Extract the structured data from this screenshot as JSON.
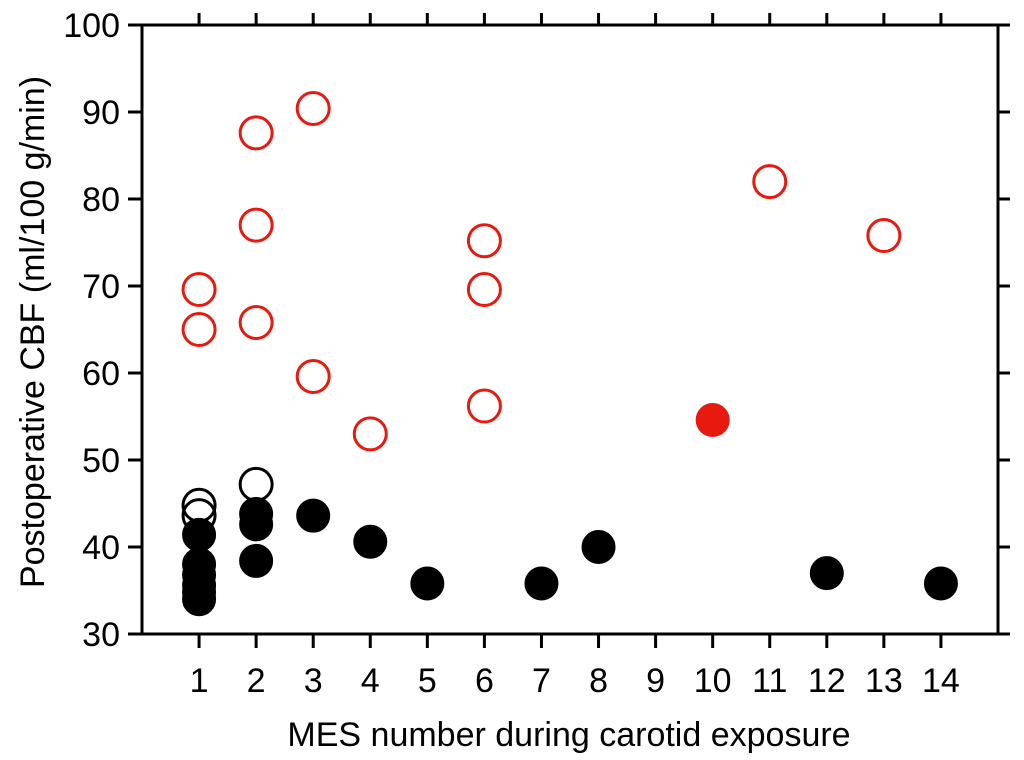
{
  "chart_data": {
    "type": "scatter",
    "title": "",
    "xlabel": "MES number during carotid exposure",
    "ylabel": "Postoperative CBF (ml/100 g/min)",
    "xlim": [
      0,
      15
    ],
    "ylim": [
      30,
      100
    ],
    "xticks": [
      1,
      2,
      3,
      4,
      5,
      6,
      7,
      8,
      9,
      10,
      11,
      12,
      13,
      14
    ],
    "yticks": [
      30,
      40,
      50,
      60,
      70,
      80,
      90,
      100
    ],
    "grid": false,
    "legend": "none",
    "series": [
      {
        "marker": "open-circle",
        "color": "#e8190f",
        "points": [
          {
            "x": 1,
            "y": 69.6
          },
          {
            "x": 1,
            "y": 65.0
          },
          {
            "x": 2,
            "y": 87.6
          },
          {
            "x": 2,
            "y": 77.0
          },
          {
            "x": 2,
            "y": 65.8
          },
          {
            "x": 3,
            "y": 90.4
          },
          {
            "x": 3,
            "y": 59.6
          },
          {
            "x": 4,
            "y": 53.0
          },
          {
            "x": 6,
            "y": 75.2
          },
          {
            "x": 6,
            "y": 69.6
          },
          {
            "x": 6,
            "y": 56.2
          },
          {
            "x": 11,
            "y": 82.0
          },
          {
            "x": 13,
            "y": 75.8
          }
        ]
      },
      {
        "marker": "filled-circle",
        "color": "#e8190f",
        "points": [
          {
            "x": 10,
            "y": 54.6
          }
        ]
      },
      {
        "marker": "open-circle",
        "color": "#000000",
        "points": [
          {
            "x": 1,
            "y": 44.8
          },
          {
            "x": 1,
            "y": 43.6
          },
          {
            "x": 2,
            "y": 47.2
          }
        ]
      },
      {
        "marker": "filled-circle",
        "color": "#000000",
        "points": [
          {
            "x": 1,
            "y": 41.4
          },
          {
            "x": 1,
            "y": 38.0
          },
          {
            "x": 1,
            "y": 36.8
          },
          {
            "x": 1,
            "y": 35.6
          },
          {
            "x": 1,
            "y": 34.8
          },
          {
            "x": 1,
            "y": 34.0
          },
          {
            "x": 2,
            "y": 43.8
          },
          {
            "x": 2,
            "y": 42.6
          },
          {
            "x": 2,
            "y": 38.4
          },
          {
            "x": 3,
            "y": 43.6
          },
          {
            "x": 4,
            "y": 40.6
          },
          {
            "x": 5,
            "y": 35.8
          },
          {
            "x": 7,
            "y": 35.8
          },
          {
            "x": 8,
            "y": 40.0
          },
          {
            "x": 12,
            "y": 37.0
          },
          {
            "x": 14,
            "y": 35.8
          }
        ]
      }
    ]
  }
}
